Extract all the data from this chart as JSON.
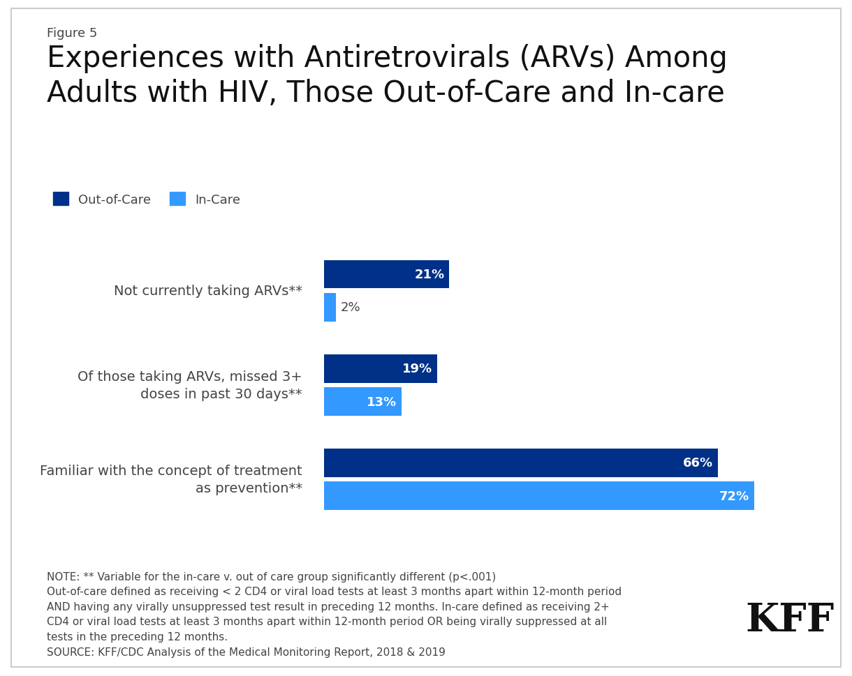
{
  "figure_label": "Figure 5",
  "title_line1": "Experiences with Antiretrovirals (ARVs) Among",
  "title_line2": "Adults with HIV, Those Out-of-Care and In-care",
  "categories": [
    "Not currently taking ARVs**",
    "Of those taking ARVs, missed 3+\ndoses in past 30 days**",
    "Familiar with the concept of treatment\nas prevention**"
  ],
  "out_of_care_values": [
    21,
    19,
    66
  ],
  "in_care_values": [
    2,
    13,
    72
  ],
  "out_of_care_color": "#003087",
  "in_care_color": "#3399FF",
  "bar_height": 0.3,
  "bar_gap": 0.05,
  "xlim": [
    0,
    82
  ],
  "legend_labels": [
    "Out-of-Care",
    "In-Care"
  ],
  "note_text": "NOTE: ** Variable for the in-care v. out of care group significantly different (p<.001)\nOut-of-care defined as receiving < 2 CD4 or viral load tests at least 3 months apart within 12-month period\nAND having any virally unsuppressed test result in preceding 12 months. In-care defined as receiving 2+\nCD4 or viral load tests at least 3 months apart within 12-month period OR being virally suppressed at all\ntests in the preceding 12 months.\nSOURCE: KFF/CDC Analysis of the Medical Monitoring Report, 2018 & 2019",
  "bg_color": "#ffffff",
  "border_color": "#cccccc",
  "text_color": "#444444",
  "title_fontsize": 30,
  "figure_label_fontsize": 13,
  "category_label_fontsize": 14,
  "note_fontsize": 11,
  "legend_fontsize": 13,
  "value_fontsize": 13
}
